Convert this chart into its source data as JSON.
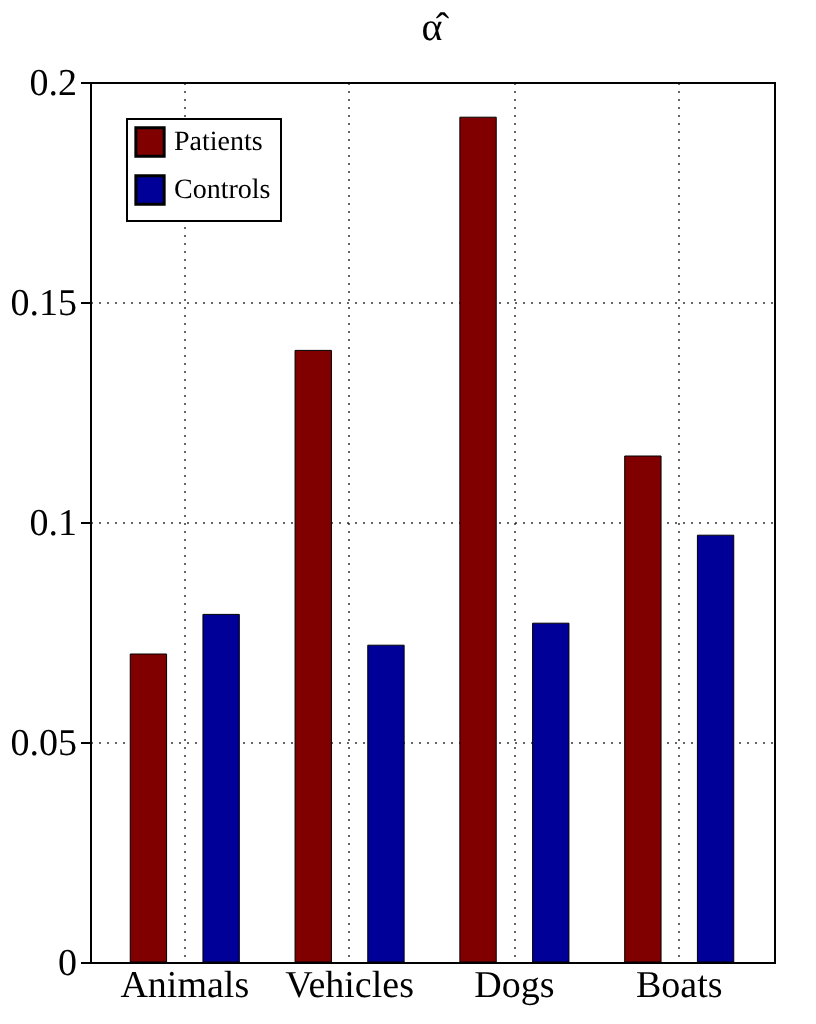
{
  "chart_data": {
    "type": "bar",
    "title": "α̂",
    "categories": [
      "Animals",
      "Vehicles",
      "Dogs",
      "Boats"
    ],
    "series": [
      {
        "name": "Patients",
        "color": "#800000",
        "values": [
          0.07,
          0.139,
          0.192,
          0.115
        ]
      },
      {
        "name": "Controls",
        "color": "#000099",
        "values": [
          0.079,
          0.072,
          0.077,
          0.097
        ]
      }
    ],
    "ylim": [
      0,
      0.2
    ],
    "yticks": [
      0,
      0.05,
      0.1,
      0.15,
      0.2
    ],
    "grid": true,
    "legend": "top left"
  }
}
